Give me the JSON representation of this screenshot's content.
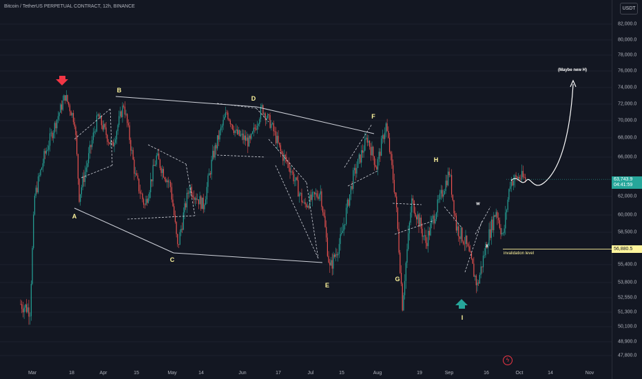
{
  "header": {
    "title": "Bitcoin / TetherUS PERPETUAL CONTRACT, 12h, BINANCE",
    "currency": "USDT"
  },
  "colors": {
    "background": "#131722",
    "bull": "#26a69a",
    "bear": "#ef5350",
    "annotation": "#fff59d",
    "trendline": "#d1d4dc"
  },
  "chart_data": {
    "type": "candlestick",
    "title": "Bitcoin / TetherUS PERPETUAL CONTRACT, 12h, BINANCE",
    "y_ticks": [
      "82,000.0",
      "80,000.0",
      "78,000.0",
      "76,000.0",
      "74,000.0",
      "72,000.0",
      "70,000.0",
      "68,000.0",
      "66,000.0",
      "62,000.0",
      "60,000.0",
      "58,500.0",
      "55,400.0",
      "53,800.0",
      "52,550.0",
      "51,300.0",
      "50,100.0",
      "48,900.0",
      "47,800.0"
    ],
    "x_ticks": [
      "Mar",
      "18",
      "Apr",
      "15",
      "May",
      "14",
      "Jun",
      "17",
      "Jul",
      "15",
      "Aug",
      "19",
      "Sep",
      "16",
      "Oct",
      "14",
      "Nov"
    ],
    "price_path": [
      [
        "2024-02-24",
        52000
      ],
      [
        "2024-02-28",
        51500
      ],
      [
        "2024-03-01",
        62000
      ],
      [
        "2024-03-05",
        66000
      ],
      [
        "2024-03-09",
        69000
      ],
      [
        "2024-03-14",
        73000
      ],
      [
        "2024-03-18",
        70000
      ],
      [
        "2024-03-20",
        62000
      ],
      [
        "2024-03-24",
        66000
      ],
      [
        "2024-03-28",
        70500
      ],
      [
        "2024-04-03",
        67000
      ],
      [
        "2024-04-08",
        72000
      ],
      [
        "2024-04-13",
        64000
      ],
      [
        "2024-04-17",
        61000
      ],
      [
        "2024-04-22",
        66000
      ],
      [
        "2024-04-28",
        63000
      ],
      [
        "2024-05-01",
        57000
      ],
      [
        "2024-05-06",
        63000
      ],
      [
        "2024-05-12",
        61000
      ],
      [
        "2024-05-16",
        66000
      ],
      [
        "2024-05-22",
        71000
      ],
      [
        "2024-05-26",
        68500
      ],
      [
        "2024-06-01",
        67500
      ],
      [
        "2024-06-06",
        71500
      ],
      [
        "2024-06-10",
        69500
      ],
      [
        "2024-06-14",
        66500
      ],
      [
        "2024-06-18",
        65000
      ],
      [
        "2024-06-24",
        61000
      ],
      [
        "2024-07-01",
        62500
      ],
      [
        "2024-07-05",
        55000
      ],
      [
        "2024-07-10",
        58000
      ],
      [
        "2024-07-15",
        64000
      ],
      [
        "2024-07-21",
        68000
      ],
      [
        "2024-07-25",
        65000
      ],
      [
        "2024-07-29",
        69500
      ],
      [
        "2024-08-02",
        62000
      ],
      [
        "2024-08-05",
        52000
      ],
      [
        "2024-08-09",
        61500
      ],
      [
        "2024-08-15",
        57500
      ],
      [
        "2024-08-20",
        61000
      ],
      [
        "2024-08-25",
        64500
      ],
      [
        "2024-08-28",
        59000
      ],
      [
        "2024-09-01",
        57500
      ],
      [
        "2024-09-06",
        53500
      ],
      [
        "2024-09-10",
        57500
      ],
      [
        "2024-09-14",
        60500
      ],
      [
        "2024-09-17",
        58000
      ],
      [
        "2024-09-20",
        63500
      ],
      [
        "2024-09-24",
        64000
      ],
      [
        "2024-09-27",
        63700
      ]
    ],
    "current_price": "63,743.9",
    "countdown": "04:41:59",
    "invalidation_price": "56,880.5",
    "wave_labels": [
      "A",
      "B",
      "C",
      "D",
      "E",
      "F",
      "G",
      "H",
      "I",
      "w",
      "x"
    ],
    "annotations": {
      "maybe_label": "(Maybe new H)",
      "invalidation_label": "invalidation level"
    }
  }
}
